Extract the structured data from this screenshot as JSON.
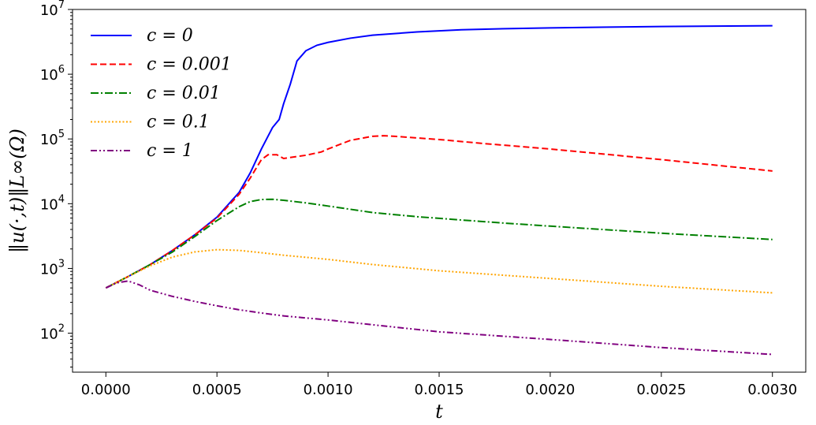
{
  "chart_data": {
    "type": "line",
    "xlabel": "t",
    "ylabel": "‖u(·,t)‖L∞(Ω)",
    "yscale": "log",
    "xlim": [
      -0.00015,
      0.00315
    ],
    "ylim": [
      25,
      10000000
    ],
    "grid": false,
    "legend_position": "top-left",
    "x_ticks": [
      "0.0000",
      "0.0005",
      "0.0010",
      "0.0015",
      "0.0020",
      "0.0025",
      "0.0030"
    ],
    "y_ticks": [
      {
        "base": "10",
        "exp": "2"
      },
      {
        "base": "10",
        "exp": "3"
      },
      {
        "base": "10",
        "exp": "4"
      },
      {
        "base": "10",
        "exp": "5"
      },
      {
        "base": "10",
        "exp": "6"
      },
      {
        "base": "10",
        "exp": "7"
      }
    ],
    "series": [
      {
        "name": "c = 0",
        "color": "#0000ff",
        "dash": "solid",
        "x": [
          0,
          0.0001,
          0.0002,
          0.0003,
          0.0004,
          0.0005,
          0.0006,
          0.00065,
          0.0007,
          0.00075,
          0.00078,
          0.0008,
          0.00083,
          0.00086,
          0.0009,
          0.00095,
          0.001,
          0.0011,
          0.0012,
          0.0014,
          0.0016,
          0.0018,
          0.002,
          0.0025,
          0.003
        ],
        "y": [
          500,
          750,
          1150,
          1900,
          3300,
          6200,
          15000,
          30000,
          70000,
          150000,
          200000,
          350000,
          700000,
          1600000,
          2300000,
          2800000,
          3100000,
          3600000,
          4000000,
          4500000,
          4850000,
          5050000,
          5200000,
          5450000,
          5600000
        ]
      },
      {
        "name": "c = 0.001",
        "color": "#ff0000",
        "dash": "dashed",
        "x": [
          0,
          0.0001,
          0.0002,
          0.0003,
          0.0004,
          0.0005,
          0.0006,
          0.00065,
          0.0007,
          0.00073,
          0.00077,
          0.0008,
          0.0009,
          0.00097,
          0.001,
          0.0011,
          0.0012,
          0.00125,
          0.0013,
          0.0015,
          0.0017,
          0.002,
          0.0025,
          0.003
        ],
        "y": [
          500,
          750,
          1150,
          1900,
          3300,
          6000,
          14000,
          25000,
          48000,
          57000,
          57000,
          50000,
          56000,
          63000,
          70000,
          95000,
          110000,
          112000,
          110000,
          98000,
          85000,
          70000,
          48000,
          32000
        ]
      },
      {
        "name": "c = 0.01",
        "color": "#008000",
        "dash": "dashdot",
        "x": [
          0,
          0.0001,
          0.0002,
          0.0003,
          0.0004,
          0.0005,
          0.0006,
          0.00065,
          0.0007,
          0.00075,
          0.0008,
          0.0009,
          0.001,
          0.0011,
          0.0012,
          0.0014,
          0.0016,
          0.0018,
          0.002,
          0.0025,
          0.003
        ],
        "y": [
          500,
          750,
          1150,
          1800,
          3100,
          5500,
          9000,
          10800,
          11600,
          11700,
          11300,
          10300,
          9200,
          8200,
          7300,
          6300,
          5600,
          5000,
          4500,
          3500,
          2800
        ]
      },
      {
        "name": "c = 0.1",
        "color": "#ffa500",
        "dash": "dotted",
        "x": [
          0,
          0.0001,
          0.0002,
          0.0003,
          0.0004,
          0.0005,
          0.0006,
          0.0007,
          0.0008,
          0.001,
          0.0012,
          0.0015,
          0.002,
          0.0025,
          0.003
        ],
        "y": [
          500,
          750,
          1100,
          1500,
          1800,
          1950,
          1900,
          1750,
          1600,
          1380,
          1150,
          920,
          700,
          530,
          420
        ]
      },
      {
        "name": "c = 1",
        "color": "#800080",
        "dash": "dashdotdot",
        "x": [
          0,
          5e-05,
          0.0001,
          0.00015,
          0.0002,
          0.0003,
          0.0004,
          0.0005,
          0.0006,
          0.0007,
          0.0008,
          0.001,
          0.0012,
          0.0015,
          0.002,
          0.0025,
          0.003
        ],
        "y": [
          500,
          600,
          640,
          560,
          460,
          370,
          310,
          265,
          230,
          205,
          185,
          160,
          135,
          105,
          80,
          60,
          47
        ]
      }
    ]
  }
}
